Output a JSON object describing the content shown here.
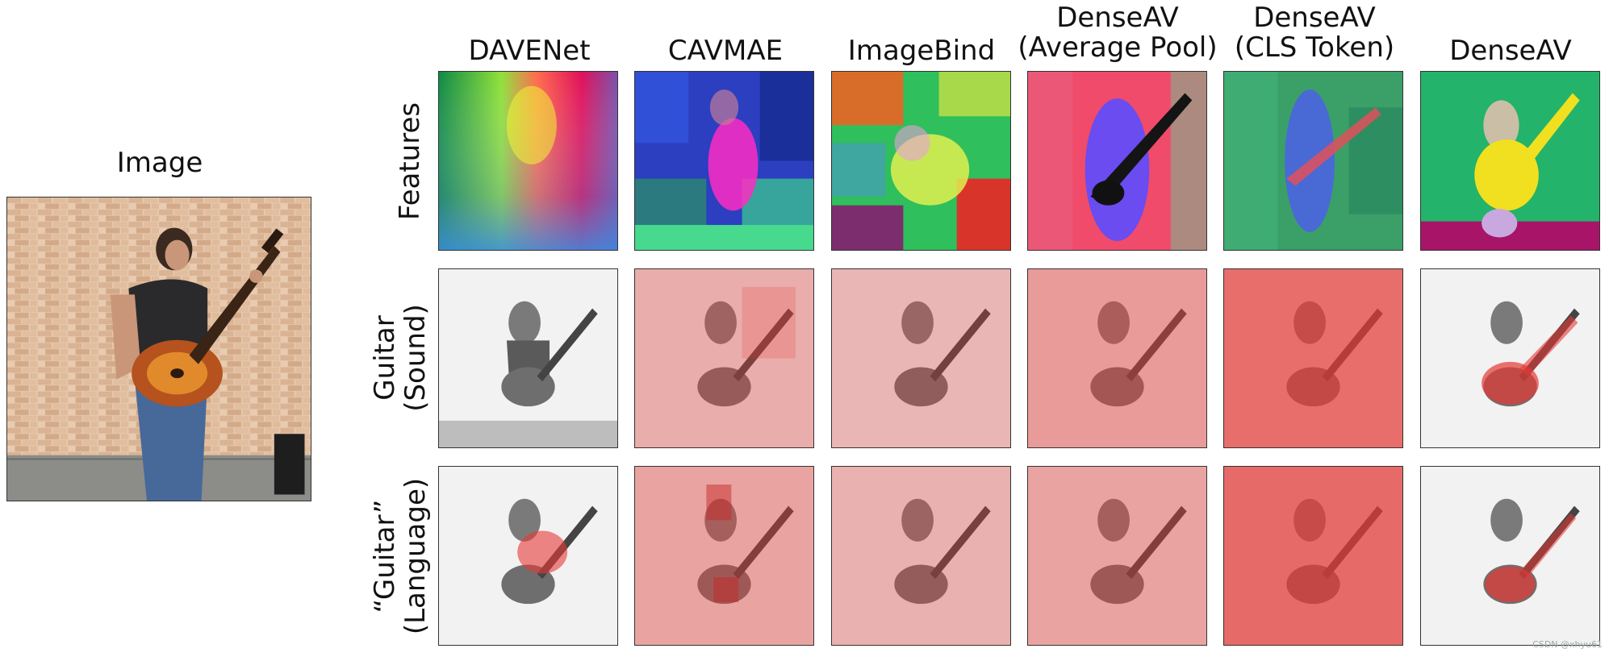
{
  "source": {
    "label": "Image"
  },
  "columns": [
    {
      "title": "DAVENet"
    },
    {
      "title": "CAVMAE"
    },
    {
      "title": "ImageBind"
    },
    {
      "title": "DenseAV\n(Average Pool)"
    },
    {
      "title": "DenseAV\n(CLS Token)"
    },
    {
      "title": "DenseAV"
    }
  ],
  "rows": [
    {
      "label": "Features"
    },
    {
      "label": "Guitar\n(Sound)"
    },
    {
      "label": "“Guitar”\n(Language)"
    }
  ],
  "watermark": "CSDN @xhyu61",
  "colors": {
    "heat": "#e53935",
    "border": "#333333"
  }
}
